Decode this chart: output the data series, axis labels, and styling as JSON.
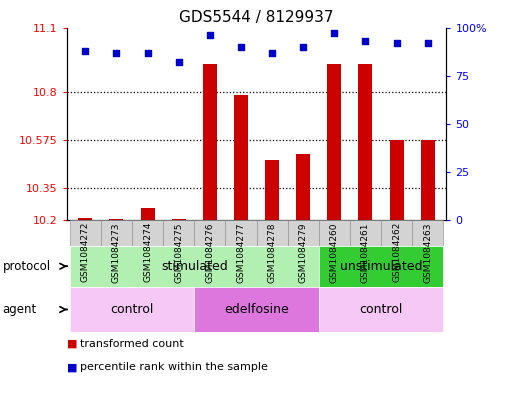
{
  "title": "GDS5544 / 8129937",
  "samples": [
    "GSM1084272",
    "GSM1084273",
    "GSM1084274",
    "GSM1084275",
    "GSM1084276",
    "GSM1084277",
    "GSM1084278",
    "GSM1084279",
    "GSM1084260",
    "GSM1084261",
    "GSM1084262",
    "GSM1084263"
  ],
  "bar_values": [
    10.212,
    10.203,
    10.255,
    10.203,
    10.93,
    10.785,
    10.48,
    10.51,
    10.93,
    10.93,
    10.575,
    10.575
  ],
  "dot_values": [
    88,
    87,
    87,
    82,
    96,
    90,
    87,
    90,
    97,
    93,
    92,
    92
  ],
  "ylim_left": [
    10.2,
    11.1
  ],
  "ylim_right": [
    0,
    100
  ],
  "yticks_left": [
    10.2,
    10.35,
    10.575,
    10.8,
    11.1
  ],
  "yticks_right": [
    0,
    25,
    50,
    75,
    100
  ],
  "bar_color": "#cc0000",
  "dot_color": "#0000cc",
  "bar_bottom": 10.2,
  "protocol_groups": [
    {
      "label": "stimulated",
      "start": 0,
      "end": 8,
      "color": "#b2f0b2"
    },
    {
      "label": "unstimulated",
      "start": 8,
      "end": 12,
      "color": "#33cc33"
    }
  ],
  "agent_groups": [
    {
      "label": "control",
      "start": 0,
      "end": 4,
      "color": "#f5c8f5"
    },
    {
      "label": "edelfosine",
      "start": 4,
      "end": 8,
      "color": "#dd77dd"
    },
    {
      "label": "control",
      "start": 8,
      "end": 12,
      "color": "#f5c8f5"
    }
  ],
  "legend_bar_label": "transformed count",
  "legend_dot_label": "percentile rank within the sample",
  "protocol_label": "protocol",
  "agent_label": "agent",
  "hline_values": [
    10.35,
    10.575,
    10.8
  ],
  "title_fontsize": 11,
  "tick_fontsize": 8,
  "label_fontsize": 8
}
